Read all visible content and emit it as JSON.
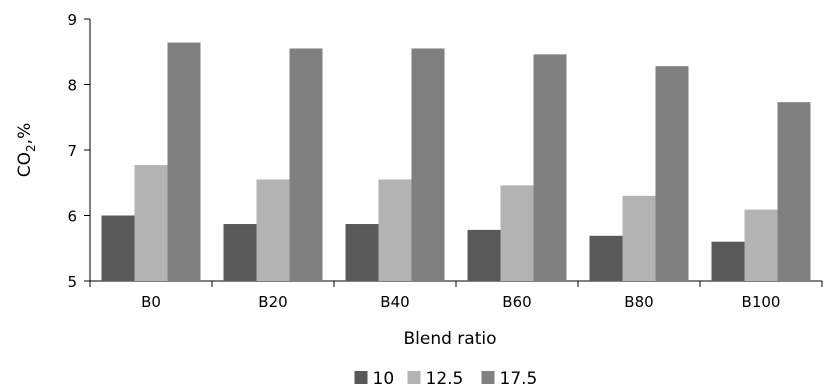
{
  "chart_data": {
    "type": "bar",
    "categories": [
      "B0",
      "B20",
      "B40",
      "B60",
      "B80",
      "B100"
    ],
    "series": [
      {
        "name": "10",
        "values": [
          6.0,
          5.87,
          5.87,
          5.78,
          5.69,
          5.6
        ],
        "color": "#595959"
      },
      {
        "name": "12.5",
        "values": [
          6.77,
          6.55,
          6.55,
          6.46,
          6.3,
          6.09
        ],
        "color": "#b3b3b3"
      },
      {
        "name": "17.5",
        "values": [
          8.64,
          8.55,
          8.55,
          8.46,
          8.28,
          7.73
        ],
        "color": "#808080"
      }
    ],
    "xlabel": "Blend ratio",
    "ylabel_main": "CO",
    "ylabel_sub": "2",
    "ylabel_suffix": ",%",
    "ylim": [
      5,
      9
    ],
    "yticks": [
      5,
      6,
      7,
      8,
      9
    ],
    "grid": false,
    "legend_position": "bottom"
  }
}
